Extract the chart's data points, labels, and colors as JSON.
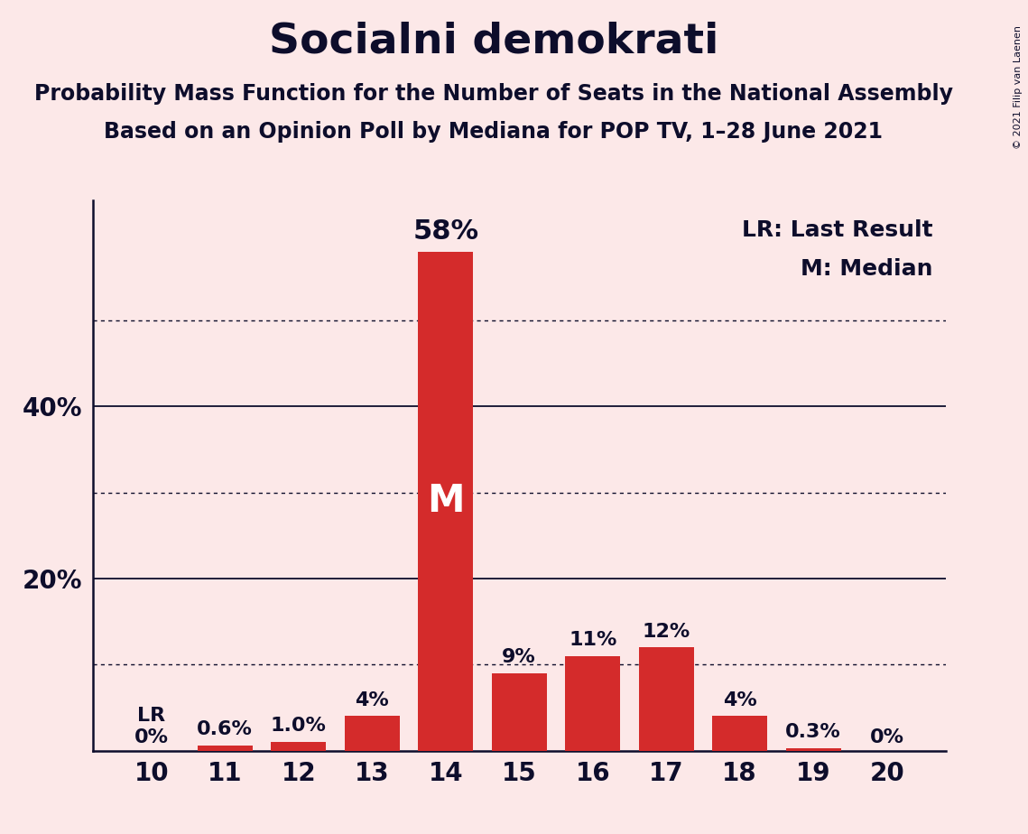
{
  "title": "Socialni demokrati",
  "subtitle1": "Probability Mass Function for the Number of Seats in the National Assembly",
  "subtitle2": "Based on an Opinion Poll by Mediana for POP TV, 1–28 June 2021",
  "copyright": "© 2021 Filip van Laenen",
  "background_color": "#fce8e8",
  "bar_color": "#d42b2b",
  "categories": [
    10,
    11,
    12,
    13,
    14,
    15,
    16,
    17,
    18,
    19,
    20
  ],
  "values": [
    0.0,
    0.6,
    1.0,
    4.0,
    58.0,
    9.0,
    11.0,
    12.0,
    4.0,
    0.3,
    0.0
  ],
  "labels": [
    "0%",
    "0.6%",
    "1.0%",
    "4%",
    "58%",
    "9%",
    "11%",
    "12%",
    "4%",
    "0.3%",
    "0%"
  ],
  "median_seat": 14,
  "lr_seat": 10,
  "lr_label": "LR",
  "median_label": "M",
  "legend_lr": "LR: Last Result",
  "legend_m": "M: Median",
  "ylim": [
    0,
    64
  ],
  "solid_yticks": [
    20,
    40
  ],
  "dotted_yticks": [
    10,
    30,
    50
  ],
  "title_fontsize": 34,
  "subtitle_fontsize": 17,
  "label_fontsize": 16,
  "label_fontsize_large": 22,
  "tick_fontsize": 20,
  "legend_fontsize": 18,
  "median_label_fontsize": 30,
  "text_color": "#0d0d2b"
}
